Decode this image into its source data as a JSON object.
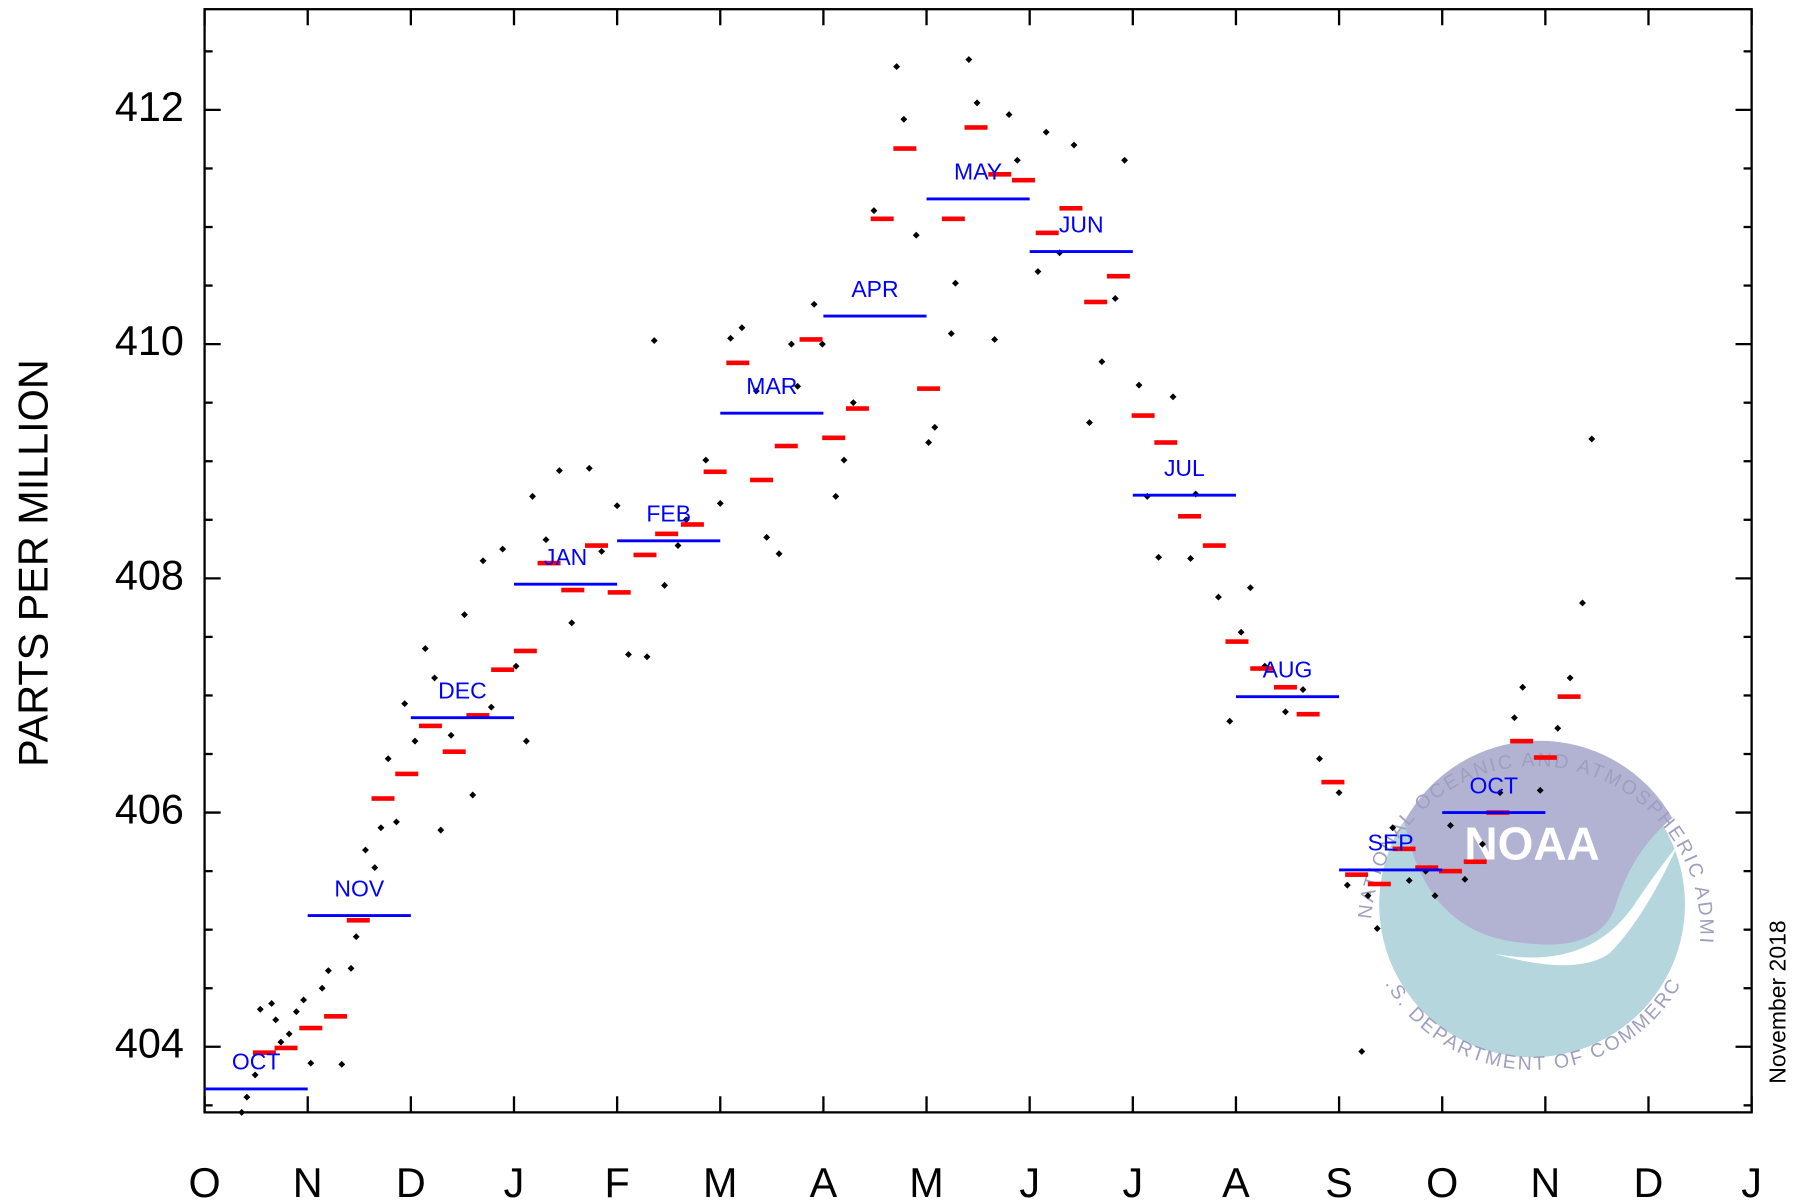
{
  "chart_data": {
    "type": "scatter",
    "ylabel": "PARTS PER MILLION",
    "note": "November 2018",
    "xlim": [
      0,
      15
    ],
    "xticks": [
      {
        "value": 0,
        "label": "O"
      },
      {
        "value": 1,
        "label": "N"
      },
      {
        "value": 2,
        "label": "D"
      },
      {
        "value": 3,
        "label": "J"
      },
      {
        "value": 4,
        "label": "F"
      },
      {
        "value": 5,
        "label": "M"
      },
      {
        "value": 6,
        "label": "A"
      },
      {
        "value": 7,
        "label": "M"
      },
      {
        "value": 8,
        "label": "J"
      },
      {
        "value": 9,
        "label": "J"
      },
      {
        "value": 10,
        "label": "A"
      },
      {
        "value": 11,
        "label": "S"
      },
      {
        "value": 12,
        "label": "O"
      },
      {
        "value": 13,
        "label": "N"
      },
      {
        "value": 14,
        "label": "D"
      },
      {
        "value": 15,
        "label": "J"
      }
    ],
    "ylim": [
      403.44,
      412.86
    ],
    "yticks": [
      404,
      406,
      408,
      410,
      412
    ],
    "yminor_ticks": [
      403.5,
      404.5,
      405,
      405.5,
      406.5,
      407,
      407.5,
      408.5,
      409,
      409.5,
      410.5,
      411,
      411.5,
      412.5
    ],
    "series": [
      {
        "style": "dot",
        "color": "#000000",
        "x": [
          0.36,
          0.41,
          0.49,
          0.54,
          0.65,
          0.69,
          0.74,
          0.82,
          0.89,
          0.96,
          1.03,
          1.14,
          1.2,
          1.33,
          1.42,
          1.47,
          1.56,
          1.65,
          1.71,
          1.78,
          1.86,
          1.94,
          2.04,
          2.14,
          2.23,
          2.29,
          2.39,
          2.52,
          2.6,
          2.7,
          2.78,
          2.89,
          3.02,
          3.12,
          3.18,
          3.31,
          3.44,
          3.56,
          3.73,
          3.85,
          4.0,
          4.11,
          4.29,
          4.36,
          4.46,
          4.59,
          4.67,
          4.86,
          5.0,
          5.1,
          5.21,
          5.35,
          5.45,
          5.57,
          5.69,
          5.75,
          5.91,
          5.99,
          6.12,
          6.2,
          6.29,
          6.49,
          6.71,
          6.78,
          6.9,
          7.02,
          7.08,
          7.24,
          7.28,
          7.41,
          7.49,
          7.66,
          7.8,
          7.88,
          8.08,
          8.16,
          8.29,
          8.43,
          8.58,
          8.7,
          8.83,
          8.92,
          9.06,
          9.14,
          9.25,
          9.39,
          9.56,
          9.61,
          9.83,
          9.94,
          10.05,
          10.14,
          10.28,
          10.48,
          10.65,
          10.81,
          11.0,
          11.08,
          11.22,
          11.28,
          11.37,
          11.52,
          11.68,
          11.84,
          11.93,
          12.08,
          12.22,
          12.39,
          12.56,
          12.7,
          12.78,
          12.95,
          13.12,
          13.24,
          13.36,
          13.45
        ],
        "values": [
          403.44,
          403.57,
          403.76,
          404.32,
          404.37,
          404.23,
          404.04,
          404.11,
          404.3,
          404.4,
          403.86,
          404.5,
          404.65,
          403.85,
          404.67,
          404.94,
          405.68,
          405.53,
          405.87,
          406.46,
          405.92,
          406.93,
          406.61,
          407.4,
          407.15,
          405.85,
          406.66,
          407.69,
          406.15,
          408.15,
          406.9,
          408.25,
          407.25,
          406.61,
          408.7,
          408.33,
          408.92,
          407.62,
          408.94,
          408.23,
          408.62,
          407.35,
          407.33,
          410.03,
          407.94,
          408.28,
          408.5,
          409.01,
          408.64,
          410.05,
          410.14,
          409.6,
          408.35,
          408.21,
          410.0,
          409.64,
          410.34,
          410.0,
          408.7,
          409.01,
          409.5,
          411.14,
          412.37,
          411.92,
          410.93,
          409.16,
          409.29,
          410.09,
          410.52,
          412.43,
          412.06,
          410.04,
          411.96,
          411.57,
          410.62,
          411.81,
          410.78,
          411.7,
          409.33,
          409.85,
          410.39,
          411.57,
          409.65,
          408.7,
          408.18,
          409.55,
          408.17,
          408.72,
          407.84,
          406.78,
          407.54,
          407.92,
          407.25,
          406.86,
          407.05,
          406.46,
          406.17,
          405.38,
          403.96,
          405.29,
          405.01,
          405.87,
          405.42,
          405.5,
          405.29,
          405.89,
          405.43,
          405.73,
          406.17,
          406.81,
          407.07,
          406.19,
          406.72,
          407.15,
          407.79,
          409.19
        ]
      },
      {
        "style": "dash",
        "color": "#ff0000",
        "x": [
          0.58,
          0.79,
          1.03,
          1.27,
          1.49,
          1.73,
          1.96,
          2.19,
          2.42,
          2.65,
          2.89,
          3.11,
          3.34,
          3.57,
          3.8,
          4.02,
          4.27,
          4.48,
          4.73,
          4.95,
          5.17,
          5.4,
          5.64,
          5.88,
          6.1,
          6.33,
          6.57,
          6.79,
          7.02,
          7.26,
          7.48,
          7.71,
          7.94,
          8.17,
          8.4,
          8.64,
          8.86,
          9.1,
          9.32,
          9.55,
          9.79,
          10.01,
          10.25,
          10.48,
          10.7,
          10.94,
          11.17,
          11.39,
          11.63,
          11.85,
          12.08,
          12.32,
          12.54,
          12.77,
          13.0,
          13.23
        ],
        "values": [
          403.95,
          403.99,
          404.16,
          404.26,
          405.08,
          406.12,
          406.33,
          406.74,
          406.52,
          406.83,
          407.22,
          407.38,
          408.13,
          407.9,
          408.28,
          407.88,
          408.2,
          408.38,
          408.46,
          408.91,
          409.84,
          408.84,
          409.13,
          410.04,
          409.2,
          409.45,
          411.07,
          411.67,
          409.62,
          411.07,
          411.85,
          411.45,
          411.4,
          410.95,
          411.16,
          410.36,
          410.58,
          409.39,
          409.16,
          408.53,
          408.28,
          407.46,
          407.23,
          407.07,
          406.84,
          406.26,
          405.47,
          405.39,
          405.69,
          405.53,
          405.5,
          405.58,
          406.0,
          406.61,
          406.47,
          406.99
        ]
      },
      {
        "style": "month",
        "color": "#0000ff",
        "x": [
          0.5,
          1.5,
          2.5,
          3.5,
          4.5,
          5.5,
          6.5,
          7.5,
          8.5,
          9.5,
          10.5,
          11.5,
          12.5
        ],
        "labels": [
          "OCT",
          "NOV",
          "DEC",
          "JAN",
          "FEB",
          "MAR",
          "APR",
          "MAY",
          "JUN",
          "JUL",
          "AUG",
          "SEP",
          "OCT"
        ],
        "values": [
          403.64,
          405.12,
          406.81,
          407.95,
          408.32,
          409.41,
          410.24,
          411.24,
          410.79,
          408.71,
          406.99,
          405.51,
          406.0
        ]
      }
    ]
  },
  "logo": {
    "top": "NATIONAL OCEANIC AND ATMOSPHERIC ADMINISTRATION",
    "center": "NOAA",
    "bottom": "U.S. DEPARTMENT OF COMMERCE"
  }
}
